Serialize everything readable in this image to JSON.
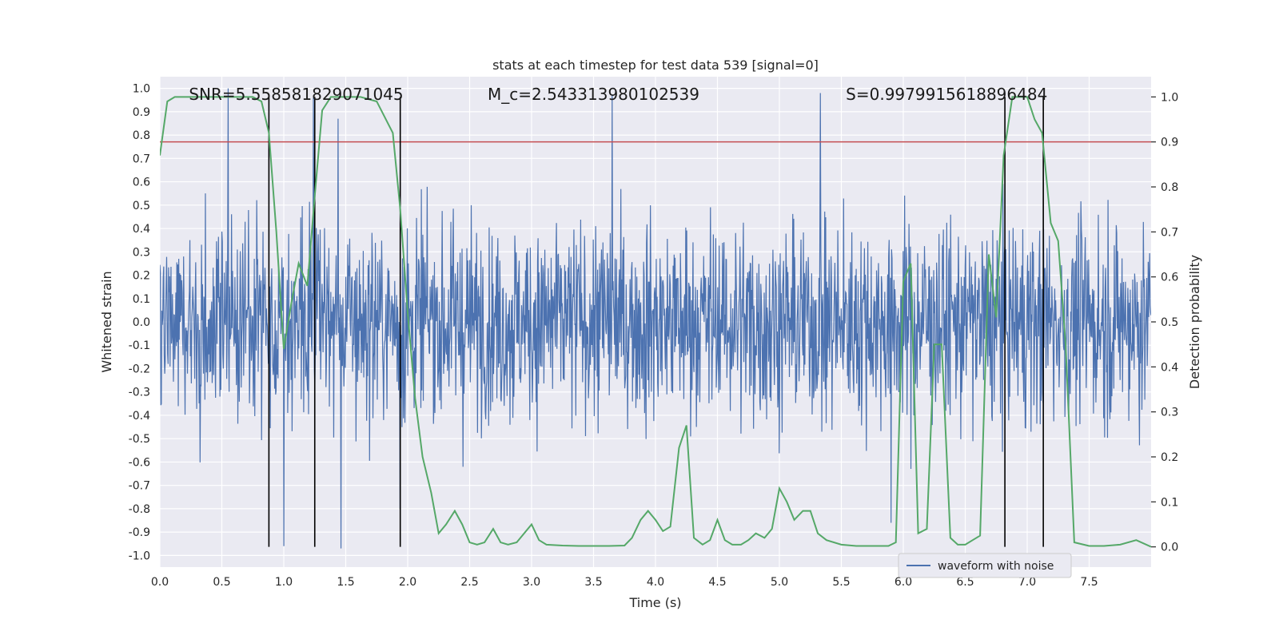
{
  "chart_data": {
    "type": "line",
    "title": "stats at each timestep for test data 539 [signal=0]",
    "xlabel": "Time (s)",
    "ylabel_left": "Whitened strain",
    "ylabel_right": "Detection probability",
    "xlim": [
      0.0,
      8.0
    ],
    "ylim_left": [
      -1.05,
      1.05
    ],
    "ylim_right": [
      -0.045,
      1.045
    ],
    "x_ticks": [
      0.0,
      0.5,
      1.0,
      1.5,
      2.0,
      2.5,
      3.0,
      3.5,
      4.0,
      4.5,
      5.0,
      5.5,
      6.0,
      6.5,
      7.0,
      7.5
    ],
    "x_tick_labels": [
      "0.0",
      "0.5",
      "1.0",
      "1.5",
      "2.0",
      "2.5",
      "3.0",
      "3.5",
      "4.0",
      "4.5",
      "5.0",
      "5.5",
      "6.0",
      "6.5",
      "7.0",
      "7.5"
    ],
    "y_left_ticks": [
      -1.0,
      -0.9,
      -0.8,
      -0.7,
      -0.6,
      -0.5,
      -0.4,
      -0.3,
      -0.2,
      -0.1,
      0.0,
      0.1,
      0.2,
      0.3,
      0.4,
      0.5,
      0.6,
      0.7,
      0.8,
      0.9,
      1.0
    ],
    "y_left_tick_labels": [
      "-1.0",
      "-0.9",
      "-0.8",
      "-0.7",
      "-0.6",
      "-0.5",
      "-0.4",
      "-0.3",
      "-0.2",
      "-0.1",
      "0.0",
      "0.1",
      "0.2",
      "0.3",
      "0.4",
      "0.5",
      "0.6",
      "0.7",
      "0.8",
      "0.9",
      "1.0"
    ],
    "y_right_ticks": [
      0.0,
      0.1,
      0.2,
      0.3,
      0.4,
      0.5,
      0.6,
      0.7,
      0.8,
      0.9,
      1.0
    ],
    "y_right_tick_labels": [
      "0.0",
      "0.1",
      "0.2",
      "0.3",
      "0.4",
      "0.5",
      "0.6",
      "0.7",
      "0.8",
      "0.9",
      "1.0"
    ],
    "grid": true,
    "legend": {
      "position": "bottom-right",
      "entries": [
        {
          "name": "waveform with noise",
          "color": "#4c72b0"
        }
      ]
    },
    "annotations": [
      {
        "label": "SNR=5.558581829071045",
        "x": 1.1
      },
      {
        "label": "M_c=2.543313980102539",
        "x": 3.5
      },
      {
        "label": "S=0.9979915618896484",
        "x": 6.35
      }
    ],
    "threshold": {
      "axis": "right",
      "y": 0.9,
      "color": "#c44e52"
    },
    "vertical_lines": [
      0.88,
      1.25,
      1.94,
      6.82,
      7.13
    ],
    "waveform": {
      "name": "waveform with noise",
      "color": "#4c72b0",
      "t_start": 0.0,
      "t_end": 8.0,
      "num_samples": 2048,
      "noise_std": 0.21,
      "peaks": [
        {
          "x": 0.55,
          "y": 1.0
        },
        {
          "x": 1.24,
          "y": 0.96
        },
        {
          "x": 1.44,
          "y": 0.87
        },
        {
          "x": 3.65,
          "y": 0.97
        },
        {
          "x": 5.33,
          "y": 0.98
        },
        {
          "x": 1.0,
          "y": -0.96
        },
        {
          "x": 1.46,
          "y": -0.97
        },
        {
          "x": 1.94,
          "y": -0.8
        },
        {
          "x": 5.9,
          "y": -0.86
        }
      ]
    },
    "probability": {
      "name": "detection probability",
      "color": "#55a868",
      "x": [
        0.0,
        0.06,
        0.12,
        0.25,
        0.5,
        0.75,
        0.82,
        0.88,
        0.94,
        1.0,
        1.06,
        1.12,
        1.19,
        1.25,
        1.31,
        1.38,
        1.5,
        1.62,
        1.75,
        1.88,
        1.94,
        2.0,
        2.06,
        2.12,
        2.19,
        2.25,
        2.31,
        2.38,
        2.44,
        2.5,
        2.56,
        2.62,
        2.69,
        2.75,
        2.81,
        2.88,
        3.0,
        3.06,
        3.12,
        3.25,
        3.38,
        3.5,
        3.62,
        3.75,
        3.81,
        3.88,
        3.94,
        4.0,
        4.06,
        4.12,
        4.19,
        4.25,
        4.31,
        4.38,
        4.44,
        4.5,
        4.56,
        4.62,
        4.69,
        4.75,
        4.81,
        4.88,
        4.94,
        5.0,
        5.06,
        5.12,
        5.19,
        5.25,
        5.31,
        5.38,
        5.5,
        5.62,
        5.75,
        5.88,
        5.94,
        6.0,
        6.06,
        6.12,
        6.19,
        6.25,
        6.31,
        6.38,
        6.44,
        6.5,
        6.56,
        6.62,
        6.69,
        6.75,
        6.81,
        6.88,
        6.94,
        7.0,
        7.06,
        7.12,
        7.19,
        7.25,
        7.31,
        7.38,
        7.5,
        7.62,
        7.75,
        7.88,
        8.0
      ],
      "y": [
        0.87,
        0.99,
        1.0,
        1.0,
        1.0,
        1.0,
        0.99,
        0.92,
        0.7,
        0.44,
        0.54,
        0.63,
        0.58,
        0.78,
        0.97,
        1.0,
        1.0,
        1.0,
        0.99,
        0.92,
        0.75,
        0.52,
        0.33,
        0.2,
        0.12,
        0.03,
        0.05,
        0.08,
        0.05,
        0.01,
        0.005,
        0.01,
        0.04,
        0.01,
        0.005,
        0.01,
        0.05,
        0.015,
        0.005,
        0.003,
        0.002,
        0.002,
        0.002,
        0.003,
        0.02,
        0.06,
        0.08,
        0.06,
        0.035,
        0.045,
        0.22,
        0.27,
        0.02,
        0.005,
        0.015,
        0.06,
        0.015,
        0.005,
        0.005,
        0.015,
        0.03,
        0.02,
        0.04,
        0.13,
        0.1,
        0.06,
        0.08,
        0.08,
        0.03,
        0.015,
        0.005,
        0.002,
        0.002,
        0.002,
        0.01,
        0.59,
        0.63,
        0.03,
        0.04,
        0.45,
        0.45,
        0.02,
        0.005,
        0.005,
        0.015,
        0.025,
        0.65,
        0.51,
        0.87,
        1.0,
        1.0,
        1.0,
        0.95,
        0.92,
        0.72,
        0.68,
        0.45,
        0.01,
        0.002,
        0.002,
        0.005,
        0.015,
        0.0
      ]
    }
  }
}
